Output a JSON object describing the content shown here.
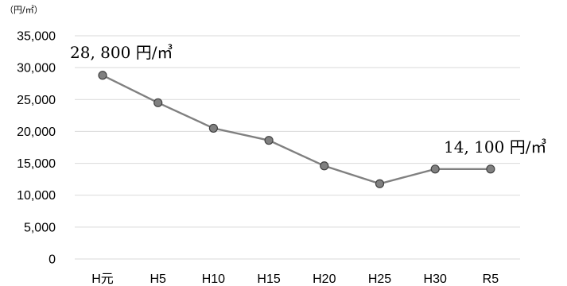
{
  "chart_data": {
    "type": "line",
    "unit_label": "（円/㎡）",
    "categories": [
      "H元",
      "H5",
      "H10",
      "H15",
      "H20",
      "H25",
      "H30",
      "R5"
    ],
    "values": [
      28800,
      24500,
      20500,
      18600,
      14600,
      11800,
      14100,
      14100
    ],
    "ylim": [
      0,
      35000
    ],
    "yticks": [
      "35,000",
      "30,000",
      "25,000",
      "20,000",
      "15,000",
      "10,000",
      "5,000",
      "0"
    ],
    "ytick_values": [
      35000,
      30000,
      25000,
      20000,
      15000,
      10000,
      5000,
      0
    ],
    "grid": true,
    "annotations": [
      {
        "text": "28, 800 円/㎥",
        "index": 0
      },
      {
        "text": "14, 100 円/㎥",
        "index": 7
      }
    ],
    "colors": {
      "line": "#808080",
      "marker_stroke": "#404040",
      "grid": "#d9d9d9"
    }
  }
}
